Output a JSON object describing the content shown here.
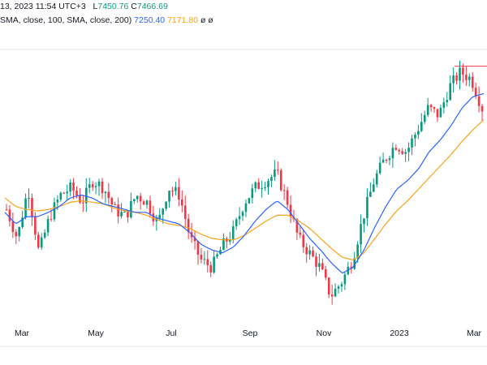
{
  "header": {
    "line1_date": "13, 2023 11:54 UTC+3",
    "line1_low_label": "L",
    "line1_low": "7450.76",
    "line1_close_label": "C",
    "line1_close": "7466.69",
    "line2_prefix": "SMA, close, 100, SMA, close, 200)",
    "line2_v1": "7250.40",
    "line2_v2": "7171.80",
    "line2_suffix": "ø ø"
  },
  "colors": {
    "up": "#089981",
    "down": "#f23645",
    "sma_fast": "#2962ff",
    "sma_slow": "#f7a21b",
    "grid": "#e0e3eb",
    "resistance": "#f23645"
  },
  "chart_data": {
    "type": "line",
    "candlestick": true,
    "x_labels": [
      "Mar",
      "May",
      "Jul",
      "Sep",
      "Nov",
      "2023",
      "Mar"
    ],
    "series": [
      {
        "name": "",
        "values": [
          6800,
          6600,
          6950,
          6500,
          6750,
          6900,
          6950,
          6850,
          7000,
          6950,
          6800,
          6750,
          6900,
          6850,
          6700,
          6950,
          6900,
          6600,
          6450,
          6400,
          6550,
          6650,
          6850,
          6950,
          7000,
          7050,
          6850,
          6600,
          6500,
          6400,
          6200,
          6300,
          6450,
          6750,
          7000,
          7150,
          7250,
          7200,
          7350,
          7500,
          7450,
          7650,
          7750,
          7700,
          7500
        ]
      },
      {
        "name": "",
        "values": [
          6780,
          6700,
          6750,
          6750,
          6780,
          6820,
          6880,
          6900,
          6880,
          6840,
          6820,
          6800,
          6780,
          6780,
          6740,
          6720,
          6700,
          6640,
          6560,
          6520,
          6500,
          6540,
          6620,
          6720,
          6800,
          6860,
          6800,
          6700,
          6600,
          6520,
          6430,
          6360,
          6400,
          6520,
          6680,
          6820,
          6940,
          7000,
          7080,
          7200,
          7280,
          7380,
          7500,
          7580,
          7600
        ]
      },
      {
        "name": "",
        "values": [
          6880,
          6820,
          6800,
          6790,
          6800,
          6820,
          6850,
          6860,
          6850,
          6840,
          6810,
          6790,
          6780,
          6760,
          6730,
          6700,
          6690,
          6670,
          6630,
          6600,
          6590,
          6590,
          6620,
          6670,
          6720,
          6760,
          6760,
          6720,
          6670,
          6600,
          6530,
          6470,
          6450,
          6500,
          6600,
          6700,
          6790,
          6860,
          6940,
          7020,
          7100,
          7180,
          7270,
          7350,
          7420
        ]
      }
    ],
    "ylim": [
      6050,
      7900
    ],
    "resistance_level": 7790
  }
}
